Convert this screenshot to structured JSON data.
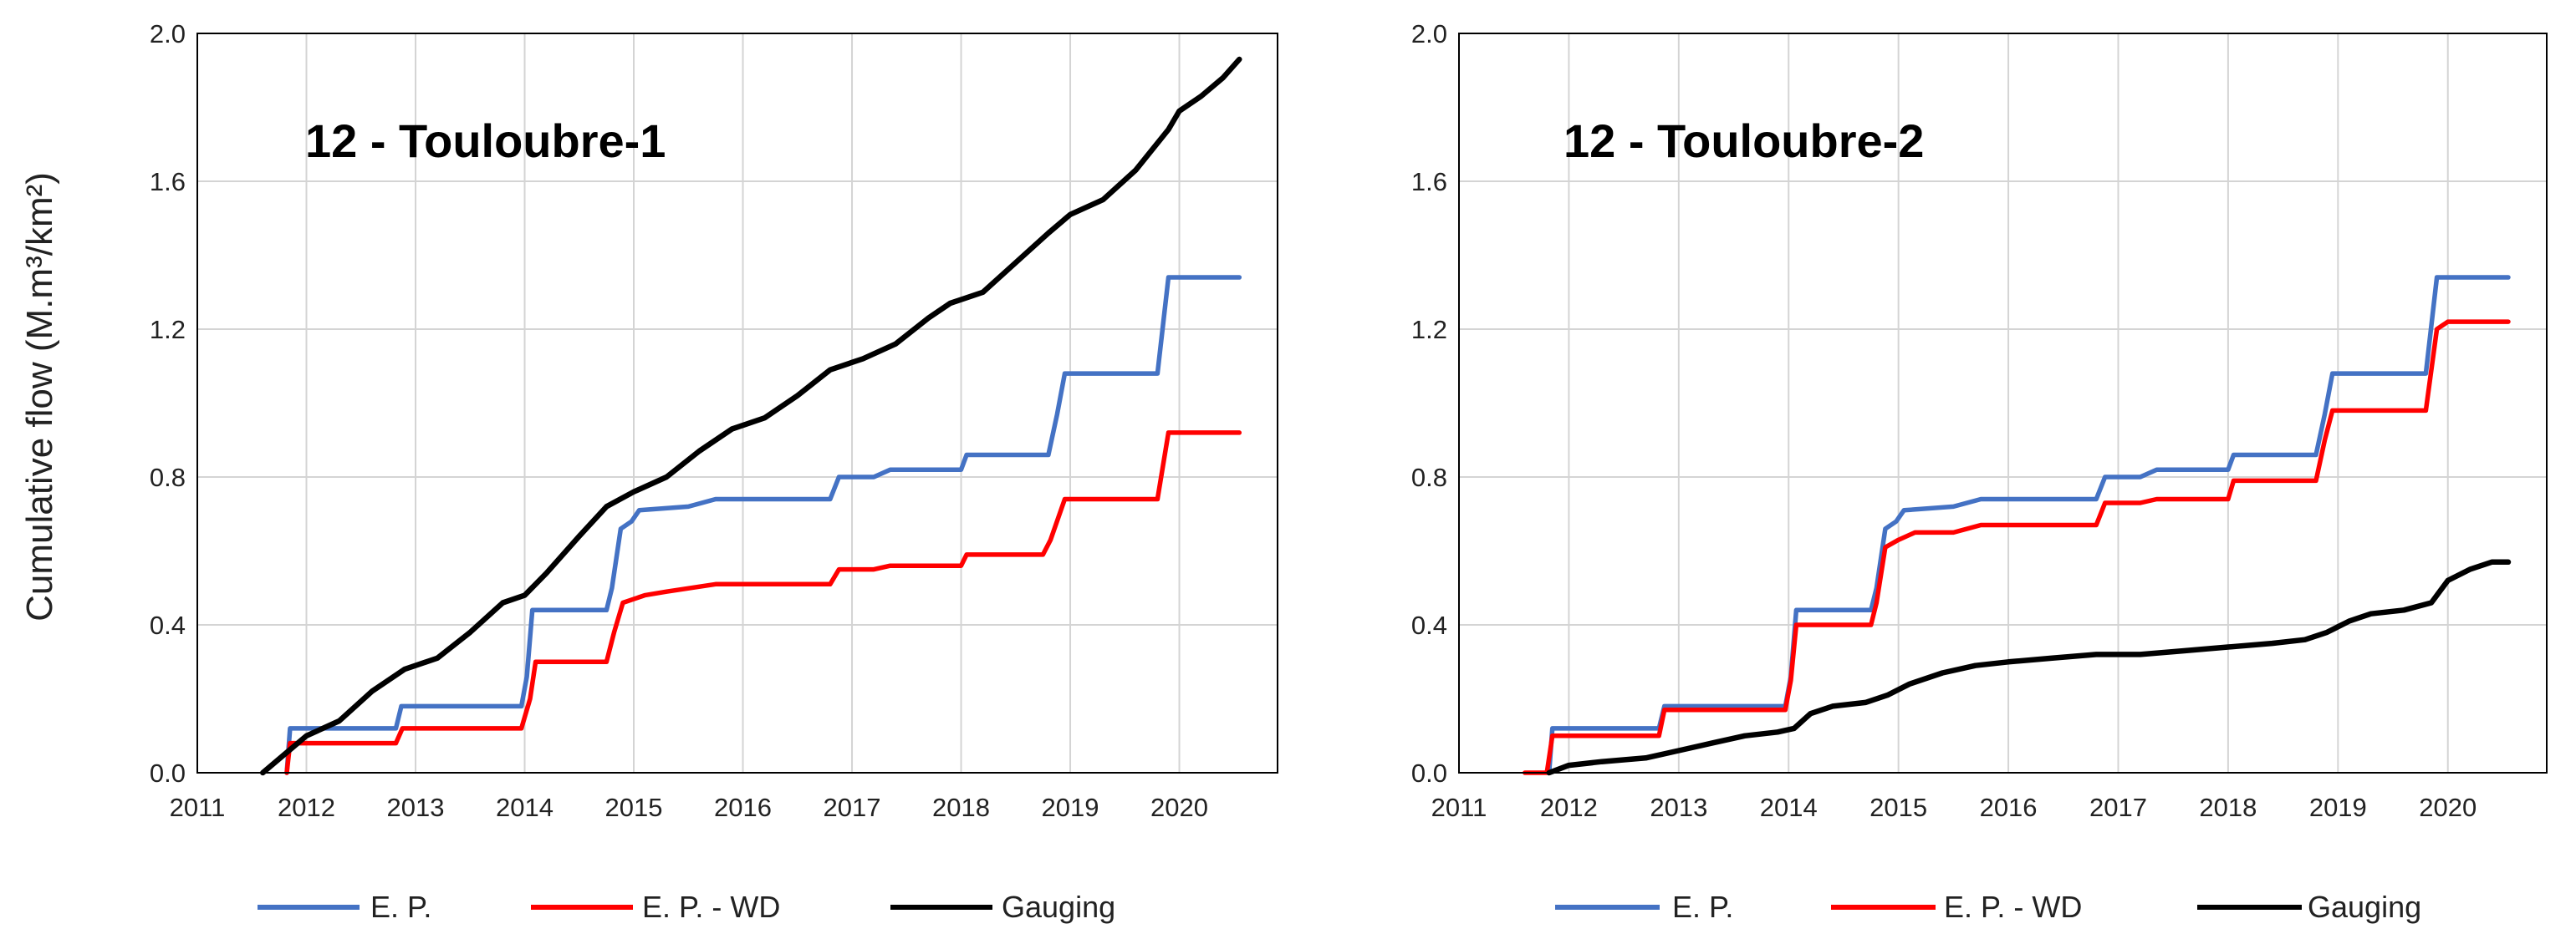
{
  "colors": {
    "ep": "#4472c4",
    "epwd": "#ff0000",
    "gauging": "#000000"
  },
  "legend_labels": [
    "E. P.",
    "E. P. - WD",
    "Gauging"
  ],
  "chart_data": [
    {
      "type": "line",
      "title": "12 - Touloubre-1",
      "xlabel": "",
      "ylabel": "Cumulative flow (M.m³/km²)",
      "xlim": [
        2011,
        2020.9
      ],
      "ylim": [
        0,
        2.0
      ],
      "xticks": [
        2011,
        2012,
        2013,
        2014,
        2015,
        2016,
        2017,
        2018,
        2019,
        2020
      ],
      "yticks": [
        "0.0",
        "0.4",
        "0.8",
        "1.2",
        "1.6",
        "2.0"
      ],
      "yticks_values": [
        0,
        0.4,
        0.8,
        1.2,
        1.6,
        2.0
      ],
      "series": [
        {
          "name": "E. P.",
          "color_key": "ep",
          "points": [
            [
              2011.82,
              0
            ],
            [
              2011.85,
              0.12
            ],
            [
              2012.82,
              0.12
            ],
            [
              2012.87,
              0.18
            ],
            [
              2013.97,
              0.18
            ],
            [
              2014.02,
              0.26
            ],
            [
              2014.07,
              0.44
            ],
            [
              2014.75,
              0.44
            ],
            [
              2014.8,
              0.5
            ],
            [
              2014.88,
              0.66
            ],
            [
              2014.98,
              0.68
            ],
            [
              2015.05,
              0.71
            ],
            [
              2015.5,
              0.72
            ],
            [
              2015.75,
              0.74
            ],
            [
              2016.8,
              0.74
            ],
            [
              2016.88,
              0.8
            ],
            [
              2017.2,
              0.8
            ],
            [
              2017.35,
              0.82
            ],
            [
              2018.0,
              0.82
            ],
            [
              2018.05,
              0.86
            ],
            [
              2018.8,
              0.86
            ],
            [
              2018.88,
              0.97
            ],
            [
              2018.95,
              1.08
            ],
            [
              2019.8,
              1.08
            ],
            [
              2019.9,
              1.34
            ],
            [
              2020.55,
              1.34
            ]
          ]
        },
        {
          "name": "E. P. - WD",
          "color_key": "epwd",
          "points": [
            [
              2011.82,
              0
            ],
            [
              2011.85,
              0.08
            ],
            [
              2012.82,
              0.08
            ],
            [
              2012.88,
              0.12
            ],
            [
              2013.97,
              0.12
            ],
            [
              2014.05,
              0.2
            ],
            [
              2014.1,
              0.3
            ],
            [
              2014.75,
              0.3
            ],
            [
              2014.82,
              0.38
            ],
            [
              2014.9,
              0.46
            ],
            [
              2015.1,
              0.48
            ],
            [
              2015.3,
              0.49
            ],
            [
              2015.75,
              0.51
            ],
            [
              2016.8,
              0.51
            ],
            [
              2016.88,
              0.55
            ],
            [
              2017.2,
              0.55
            ],
            [
              2017.35,
              0.56
            ],
            [
              2018.0,
              0.56
            ],
            [
              2018.05,
              0.59
            ],
            [
              2018.75,
              0.59
            ],
            [
              2018.82,
              0.63
            ],
            [
              2018.95,
              0.74
            ],
            [
              2019.8,
              0.74
            ],
            [
              2019.9,
              0.92
            ],
            [
              2020.55,
              0.92
            ]
          ]
        },
        {
          "name": "Gauging",
          "color_key": "gauging",
          "points": [
            [
              2011.6,
              0
            ],
            [
              2011.8,
              0.05
            ],
            [
              2012.0,
              0.1
            ],
            [
              2012.3,
              0.14
            ],
            [
              2012.6,
              0.22
            ],
            [
              2012.9,
              0.28
            ],
            [
              2013.2,
              0.31
            ],
            [
              2013.5,
              0.38
            ],
            [
              2013.8,
              0.46
            ],
            [
              2014.0,
              0.48
            ],
            [
              2014.2,
              0.54
            ],
            [
              2014.5,
              0.64
            ],
            [
              2014.75,
              0.72
            ],
            [
              2015.0,
              0.76
            ],
            [
              2015.3,
              0.8
            ],
            [
              2015.6,
              0.87
            ],
            [
              2015.9,
              0.93
            ],
            [
              2016.2,
              0.96
            ],
            [
              2016.5,
              1.02
            ],
            [
              2016.8,
              1.09
            ],
            [
              2017.1,
              1.12
            ],
            [
              2017.4,
              1.16
            ],
            [
              2017.7,
              1.23
            ],
            [
              2017.9,
              1.27
            ],
            [
              2018.2,
              1.3
            ],
            [
              2018.5,
              1.38
            ],
            [
              2018.8,
              1.46
            ],
            [
              2019.0,
              1.51
            ],
            [
              2019.3,
              1.55
            ],
            [
              2019.6,
              1.63
            ],
            [
              2019.9,
              1.74
            ],
            [
              2020.0,
              1.79
            ],
            [
              2020.2,
              1.83
            ],
            [
              2020.4,
              1.88
            ],
            [
              2020.55,
              1.93
            ]
          ]
        }
      ]
    },
    {
      "type": "line",
      "title": "12 - Touloubre-2",
      "xlabel": "",
      "ylabel": "",
      "xlim": [
        2011,
        2020.9
      ],
      "ylim": [
        0,
        2.0
      ],
      "xticks": [
        2011,
        2012,
        2013,
        2014,
        2015,
        2016,
        2017,
        2018,
        2019,
        2020
      ],
      "yticks": [
        "0.0",
        "0.4",
        "0.8",
        "1.2",
        "1.6",
        "2.0"
      ],
      "yticks_values": [
        0,
        0.4,
        0.8,
        1.2,
        1.6,
        2.0
      ],
      "series": [
        {
          "name": "E. P.",
          "color_key": "ep",
          "points": [
            [
              2011.82,
              0
            ],
            [
              2011.85,
              0.12
            ],
            [
              2012.82,
              0.12
            ],
            [
              2012.87,
              0.18
            ],
            [
              2013.97,
              0.18
            ],
            [
              2014.02,
              0.26
            ],
            [
              2014.07,
              0.44
            ],
            [
              2014.75,
              0.44
            ],
            [
              2014.8,
              0.5
            ],
            [
              2014.88,
              0.66
            ],
            [
              2014.98,
              0.68
            ],
            [
              2015.05,
              0.71
            ],
            [
              2015.5,
              0.72
            ],
            [
              2015.75,
              0.74
            ],
            [
              2016.8,
              0.74
            ],
            [
              2016.88,
              0.8
            ],
            [
              2017.2,
              0.8
            ],
            [
              2017.35,
              0.82
            ],
            [
              2018.0,
              0.82
            ],
            [
              2018.05,
              0.86
            ],
            [
              2018.8,
              0.86
            ],
            [
              2018.88,
              0.97
            ],
            [
              2018.95,
              1.08
            ],
            [
              2019.8,
              1.08
            ],
            [
              2019.9,
              1.34
            ],
            [
              2020.55,
              1.34
            ]
          ]
        },
        {
          "name": "E. P. - WD",
          "color_key": "epwd",
          "points": [
            [
              2011.6,
              0
            ],
            [
              2011.8,
              0
            ],
            [
              2011.85,
              0.1
            ],
            [
              2012.82,
              0.1
            ],
            [
              2012.87,
              0.17
            ],
            [
              2013.97,
              0.17
            ],
            [
              2014.02,
              0.25
            ],
            [
              2014.07,
              0.4
            ],
            [
              2014.75,
              0.4
            ],
            [
              2014.8,
              0.46
            ],
            [
              2014.88,
              0.61
            ],
            [
              2015.0,
              0.63
            ],
            [
              2015.15,
              0.65
            ],
            [
              2015.5,
              0.65
            ],
            [
              2015.75,
              0.67
            ],
            [
              2016.8,
              0.67
            ],
            [
              2016.88,
              0.73
            ],
            [
              2017.2,
              0.73
            ],
            [
              2017.35,
              0.74
            ],
            [
              2018.0,
              0.74
            ],
            [
              2018.05,
              0.79
            ],
            [
              2018.8,
              0.79
            ],
            [
              2018.88,
              0.9
            ],
            [
              2018.95,
              0.98
            ],
            [
              2019.8,
              0.98
            ],
            [
              2019.9,
              1.2
            ],
            [
              2020.0,
              1.22
            ],
            [
              2020.55,
              1.22
            ]
          ]
        },
        {
          "name": "Gauging",
          "color_key": "gauging",
          "points": [
            [
              2011.82,
              0
            ],
            [
              2012.0,
              0.02
            ],
            [
              2012.3,
              0.03
            ],
            [
              2012.7,
              0.04
            ],
            [
              2013.0,
              0.06
            ],
            [
              2013.3,
              0.08
            ],
            [
              2013.6,
              0.1
            ],
            [
              2013.9,
              0.11
            ],
            [
              2014.05,
              0.12
            ],
            [
              2014.2,
              0.16
            ],
            [
              2014.4,
              0.18
            ],
            [
              2014.7,
              0.19
            ],
            [
              2014.9,
              0.21
            ],
            [
              2015.1,
              0.24
            ],
            [
              2015.4,
              0.27
            ],
            [
              2015.7,
              0.29
            ],
            [
              2016.0,
              0.3
            ],
            [
              2016.4,
              0.31
            ],
            [
              2016.8,
              0.32
            ],
            [
              2017.2,
              0.32
            ],
            [
              2017.6,
              0.33
            ],
            [
              2018.0,
              0.34
            ],
            [
              2018.4,
              0.35
            ],
            [
              2018.7,
              0.36
            ],
            [
              2018.9,
              0.38
            ],
            [
              2019.1,
              0.41
            ],
            [
              2019.3,
              0.43
            ],
            [
              2019.6,
              0.44
            ],
            [
              2019.85,
              0.46
            ],
            [
              2020.0,
              0.52
            ],
            [
              2020.2,
              0.55
            ],
            [
              2020.4,
              0.57
            ],
            [
              2020.55,
              0.57
            ]
          ]
        }
      ]
    }
  ]
}
